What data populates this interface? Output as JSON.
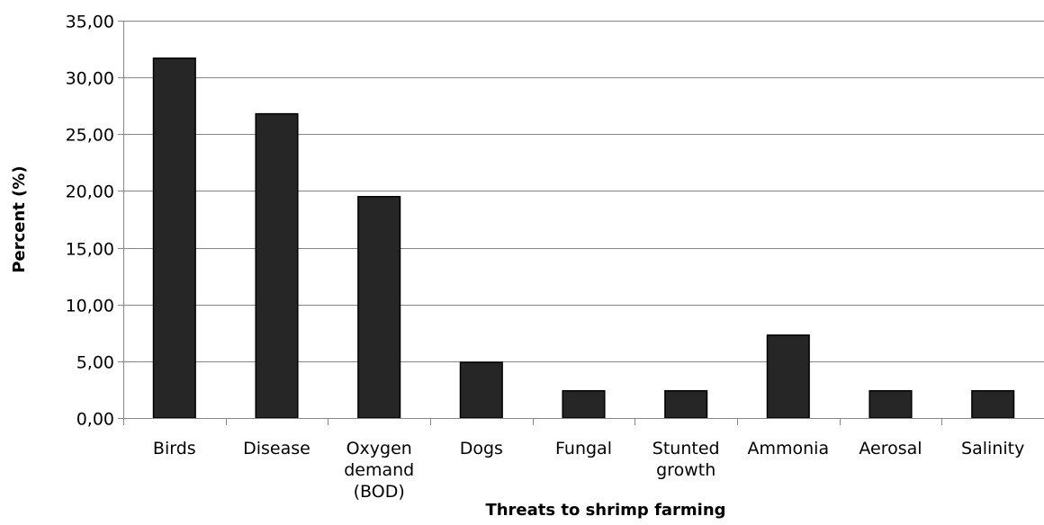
{
  "chart_data": {
    "type": "bar",
    "title": "",
    "xlabel": "Threats to shrimp farming",
    "ylabel": "Percent (%)",
    "categories": [
      [
        "Birds"
      ],
      [
        "Disease"
      ],
      [
        "Oxygen",
        "demand",
        "(BOD)"
      ],
      [
        "Dogs"
      ],
      [
        "Fungal"
      ],
      [
        "Stunted",
        "growth"
      ],
      [
        "Ammonia"
      ],
      [
        "Aerosal"
      ],
      [
        "Salinity"
      ]
    ],
    "values": [
      31.7,
      26.8,
      19.5,
      4.9,
      2.4,
      2.4,
      7.3,
      2.4,
      2.4
    ],
    "ylim": [
      0,
      35
    ],
    "yticks": [
      0,
      5,
      10,
      15,
      20,
      25,
      30,
      35
    ],
    "ytick_labels": [
      "0,00",
      "5,00",
      "10,00",
      "15,00",
      "20,00",
      "25,00",
      "30,00",
      "35,00"
    ],
    "grid": "horizontal",
    "legend": "none",
    "bar_color": "#262626"
  }
}
